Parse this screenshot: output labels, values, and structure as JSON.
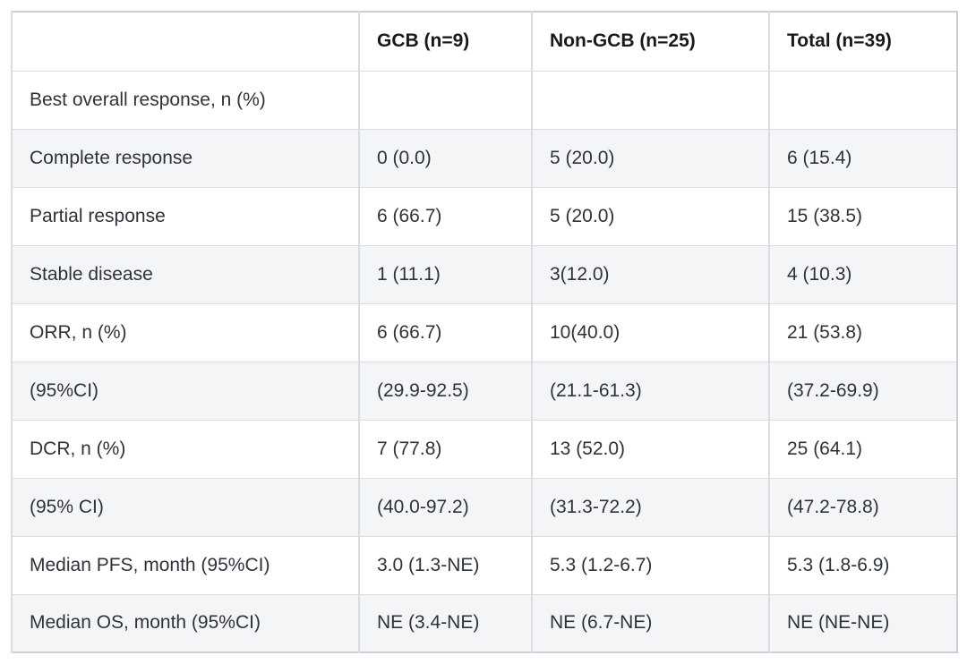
{
  "table": {
    "columns": [
      "",
      "GCB (n=9)",
      "Non-GCB (n=25)",
      "Total (n=39)"
    ],
    "rows": [
      {
        "label": "Best overall response, n (%)",
        "cells": [
          "",
          "",
          ""
        ]
      },
      {
        "label": "Complete response",
        "cells": [
          "0 (0.0)",
          "5 (20.0)",
          "6 (15.4)"
        ]
      },
      {
        "label": "Partial response",
        "cells": [
          "6 (66.7)",
          "5 (20.0)",
          "15 (38.5)"
        ]
      },
      {
        "label": "Stable disease",
        "cells": [
          "1 (11.1)",
          "3(12.0)",
          "4 (10.3)"
        ]
      },
      {
        "label": "ORR, n (%)",
        "cells": [
          "6 (66.7)",
          "10(40.0)",
          "21 (53.8)"
        ]
      },
      {
        "label": "(95%CI)",
        "cells": [
          "(29.9-92.5)",
          "(21.1-61.3)",
          "(37.2-69.9)"
        ]
      },
      {
        "label": "DCR, n (%)",
        "cells": [
          "7 (77.8)",
          "13 (52.0)",
          "25 (64.1)"
        ]
      },
      {
        "label": "(95% CI)",
        "cells": [
          "(40.0-97.2)",
          "(31.3-72.2)",
          "(47.2-78.8)"
        ]
      },
      {
        "label": "Median PFS, month (95%CI)",
        "cells": [
          "3.0 (1.3-NE)",
          "5.3 (1.2-6.7)",
          "5.3 (1.8-6.9)"
        ]
      },
      {
        "label": "Median OS, month (95%CI)",
        "cells": [
          "NE (3.4-NE)",
          "NE (6.7-NE)",
          "NE (NE-NE)"
        ]
      }
    ]
  },
  "colors": {
    "header_text": "#16191e",
    "body_text": "#2e333a",
    "border": "#d9dce1",
    "outer_border": "#ccd0d6",
    "row_alt_bg": "#f4f5f7",
    "background": "#ffffff"
  }
}
